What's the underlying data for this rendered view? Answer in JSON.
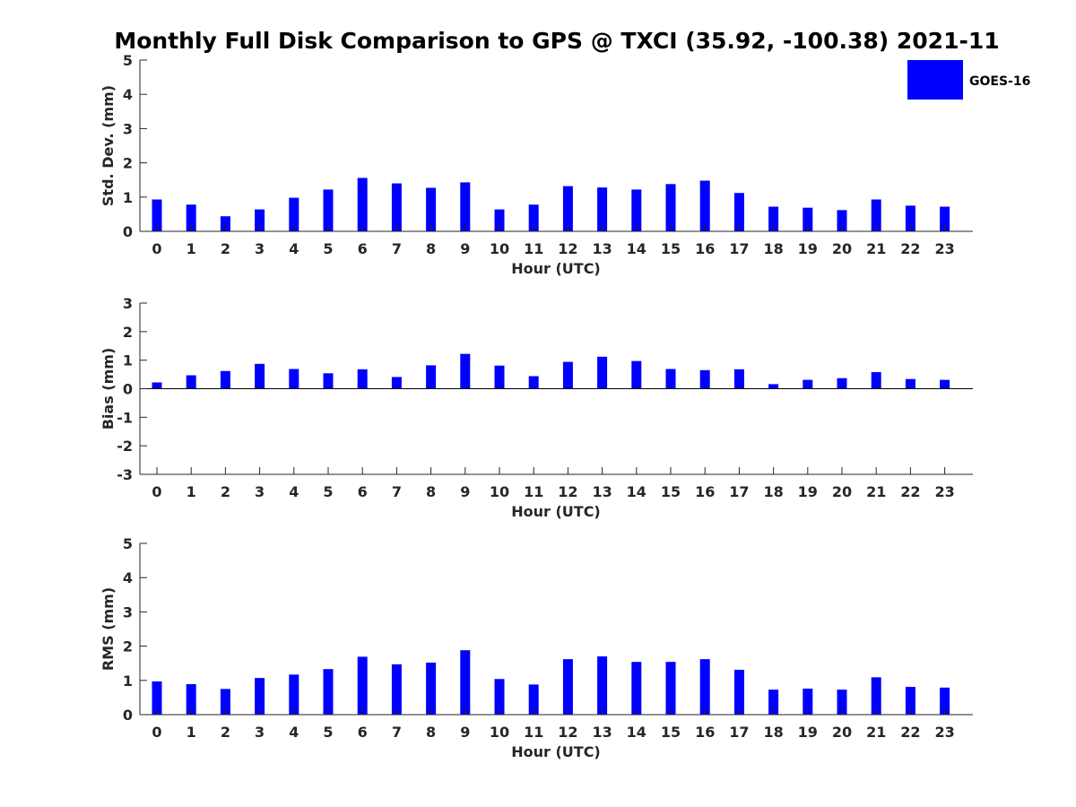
{
  "title": "Monthly Full Disk Comparison to GPS @ TXCI (35.92, -100.38) 2021-11",
  "legend": {
    "label": "GOES-16",
    "color": "#0000ff",
    "placement": "top-right"
  },
  "colors": {
    "bar": "#0000ff",
    "axis": "#262626"
  },
  "chart_data": [
    {
      "type": "bar",
      "title": "Monthly Full Disk Comparison to GPS @ TXCI (35.92, -100.38) 2021-11",
      "xlabel": "Hour (UTC)",
      "ylabel": "Std. Dev. (mm)",
      "ylim": [
        0,
        5
      ],
      "yticks": [
        0,
        1,
        2,
        3,
        4,
        5
      ],
      "grid": false,
      "categories": [
        "0",
        "1",
        "2",
        "3",
        "4",
        "5",
        "6",
        "7",
        "8",
        "9",
        "10",
        "11",
        "12",
        "13",
        "14",
        "15",
        "16",
        "17",
        "18",
        "19",
        "20",
        "21",
        "22",
        "23"
      ],
      "series": [
        {
          "name": "GOES-16",
          "values": [
            0.93,
            0.78,
            0.44,
            0.64,
            0.98,
            1.22,
            1.56,
            1.4,
            1.27,
            1.43,
            0.64,
            0.78,
            1.32,
            1.28,
            1.22,
            1.38,
            1.48,
            1.12,
            0.72,
            0.69,
            0.62,
            0.93,
            0.75,
            0.72
          ]
        }
      ]
    },
    {
      "type": "bar",
      "xlabel": "Hour (UTC)",
      "ylabel": "Bias (mm)",
      "ylim": [
        -3,
        3
      ],
      "yticks": [
        -3,
        -2,
        -1,
        0,
        1,
        2,
        3
      ],
      "grid": false,
      "categories": [
        "0",
        "1",
        "2",
        "3",
        "4",
        "5",
        "6",
        "7",
        "8",
        "9",
        "10",
        "11",
        "12",
        "13",
        "14",
        "15",
        "16",
        "17",
        "18",
        "19",
        "20",
        "21",
        "22",
        "23"
      ],
      "series": [
        {
          "name": "GOES-16",
          "values": [
            0.22,
            0.47,
            0.62,
            0.87,
            0.69,
            0.54,
            0.68,
            0.41,
            0.82,
            1.22,
            0.81,
            0.44,
            0.94,
            1.12,
            0.97,
            0.69,
            0.65,
            0.68,
            0.16,
            0.31,
            0.37,
            0.58,
            0.34,
            0.31
          ]
        }
      ]
    },
    {
      "type": "bar",
      "xlabel": "Hour (UTC)",
      "ylabel": "RMS (mm)",
      "ylim": [
        0,
        5
      ],
      "yticks": [
        0,
        1,
        2,
        3,
        4,
        5
      ],
      "grid": false,
      "categories": [
        "0",
        "1",
        "2",
        "3",
        "4",
        "5",
        "6",
        "7",
        "8",
        "9",
        "10",
        "11",
        "12",
        "13",
        "14",
        "15",
        "16",
        "17",
        "18",
        "19",
        "20",
        "21",
        "22",
        "23"
      ],
      "series": [
        {
          "name": "GOES-16",
          "values": [
            0.97,
            0.89,
            0.75,
            1.07,
            1.17,
            1.33,
            1.69,
            1.47,
            1.52,
            1.88,
            1.04,
            0.88,
            1.62,
            1.7,
            1.54,
            1.54,
            1.62,
            1.31,
            0.73,
            0.76,
            0.73,
            1.09,
            0.81,
            0.79
          ]
        }
      ]
    }
  ]
}
